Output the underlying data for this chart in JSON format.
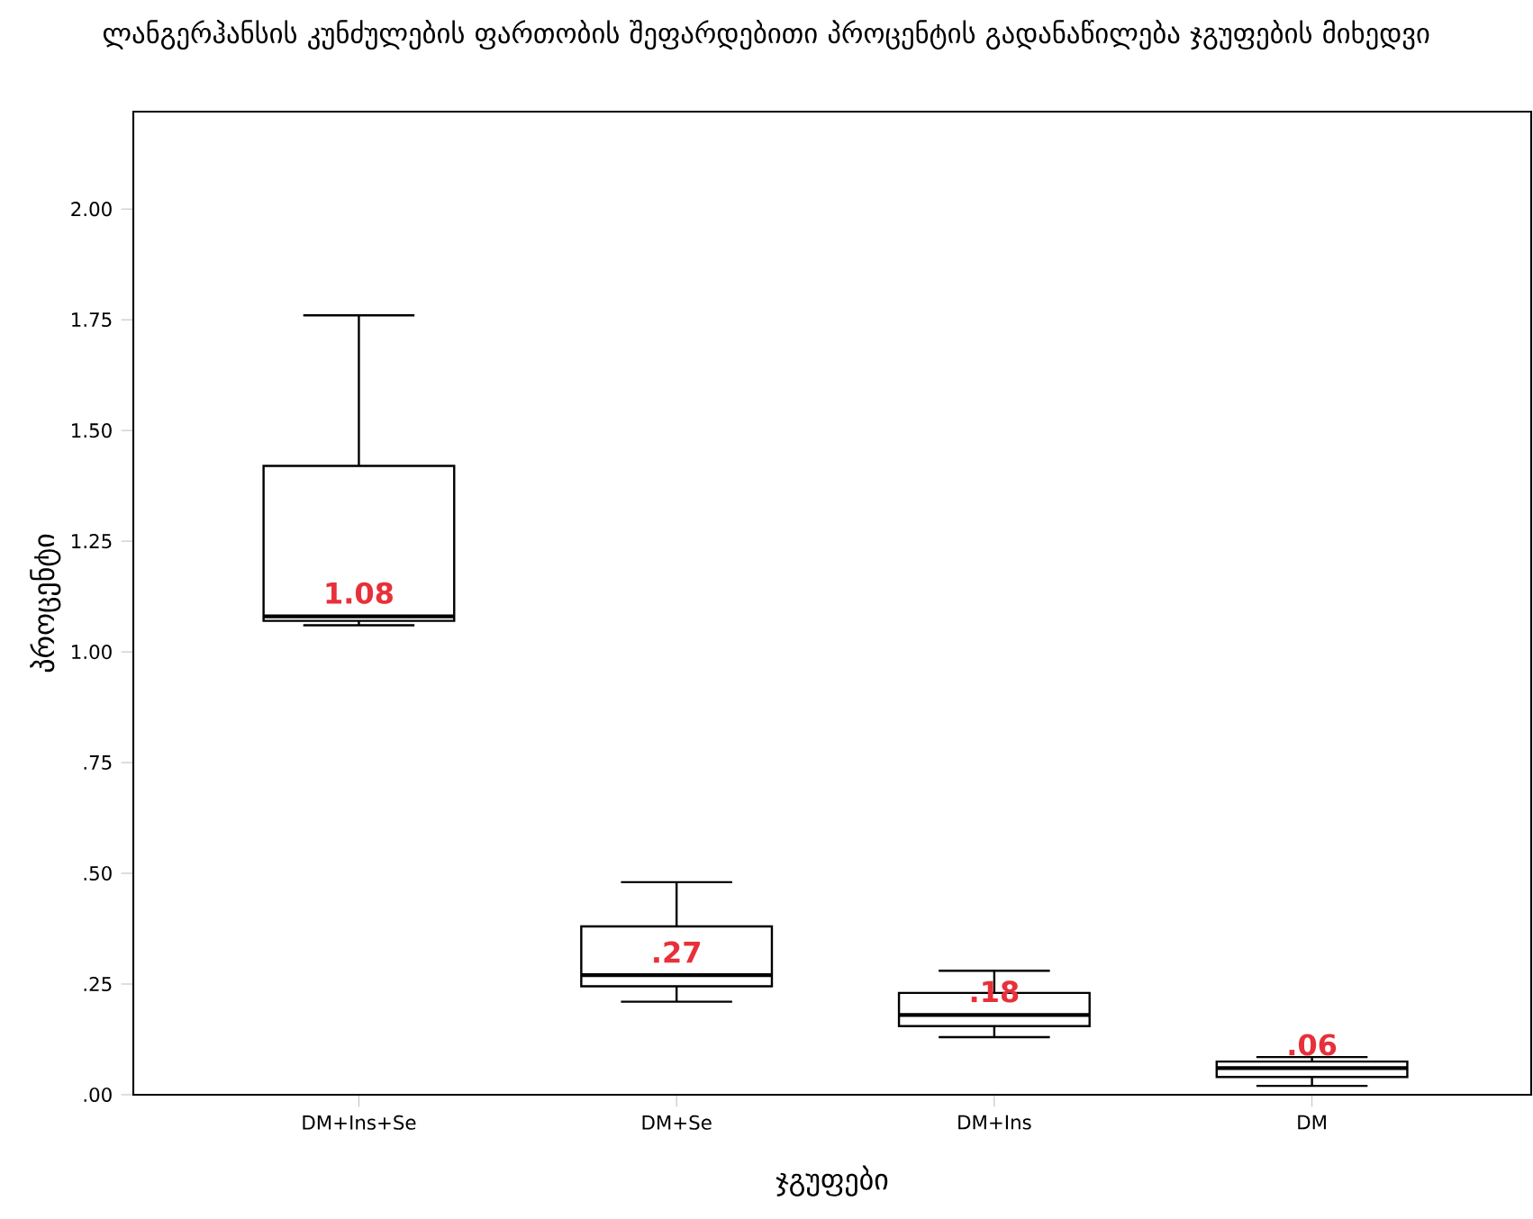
{
  "chart_data": {
    "type": "box",
    "title": "ლანგერჰანსის კუნძულების ფართობის შეფარდებითი პროცენტის  გადანაწილება ჯგუფების მიხედვი",
    "xlabel": "ჯგუფები",
    "ylabel": "პროცენტი",
    "categories": [
      "DM+Ins+Se",
      "DM+Se",
      "DM+Ins",
      "DM"
    ],
    "boxes": [
      {
        "low": 1.06,
        "q1": 1.07,
        "median": 1.08,
        "q3": 1.42,
        "high": 1.76
      },
      {
        "low": 0.21,
        "q1": 0.245,
        "median": 0.27,
        "q3": 0.38,
        "high": 0.48
      },
      {
        "low": 0.13,
        "q1": 0.155,
        "median": 0.18,
        "q3": 0.23,
        "high": 0.28
      },
      {
        "low": 0.02,
        "q1": 0.04,
        "median": 0.06,
        "q3": 0.075,
        "high": 0.085
      }
    ],
    "color": "#000000",
    "ylim": [
      0,
      2.22
    ],
    "yticks": [
      {
        "value": 0,
        "label": ".00"
      },
      {
        "value": 0.25,
        "label": ".25"
      },
      {
        "value": 0.5,
        "label": ".50"
      },
      {
        "value": 0.75,
        "label": ".75"
      },
      {
        "value": 1,
        "label": "1.00"
      },
      {
        "value": 1.25,
        "label": "1.25"
      },
      {
        "value": 1.5,
        "label": "1.50"
      },
      {
        "value": 1.75,
        "label": "1.75"
      },
      {
        "value": 2,
        "label": "2.00"
      }
    ],
    "annotations": [
      "1.08",
      ".27",
      ".18",
      ".06"
    ],
    "grid": false
  }
}
